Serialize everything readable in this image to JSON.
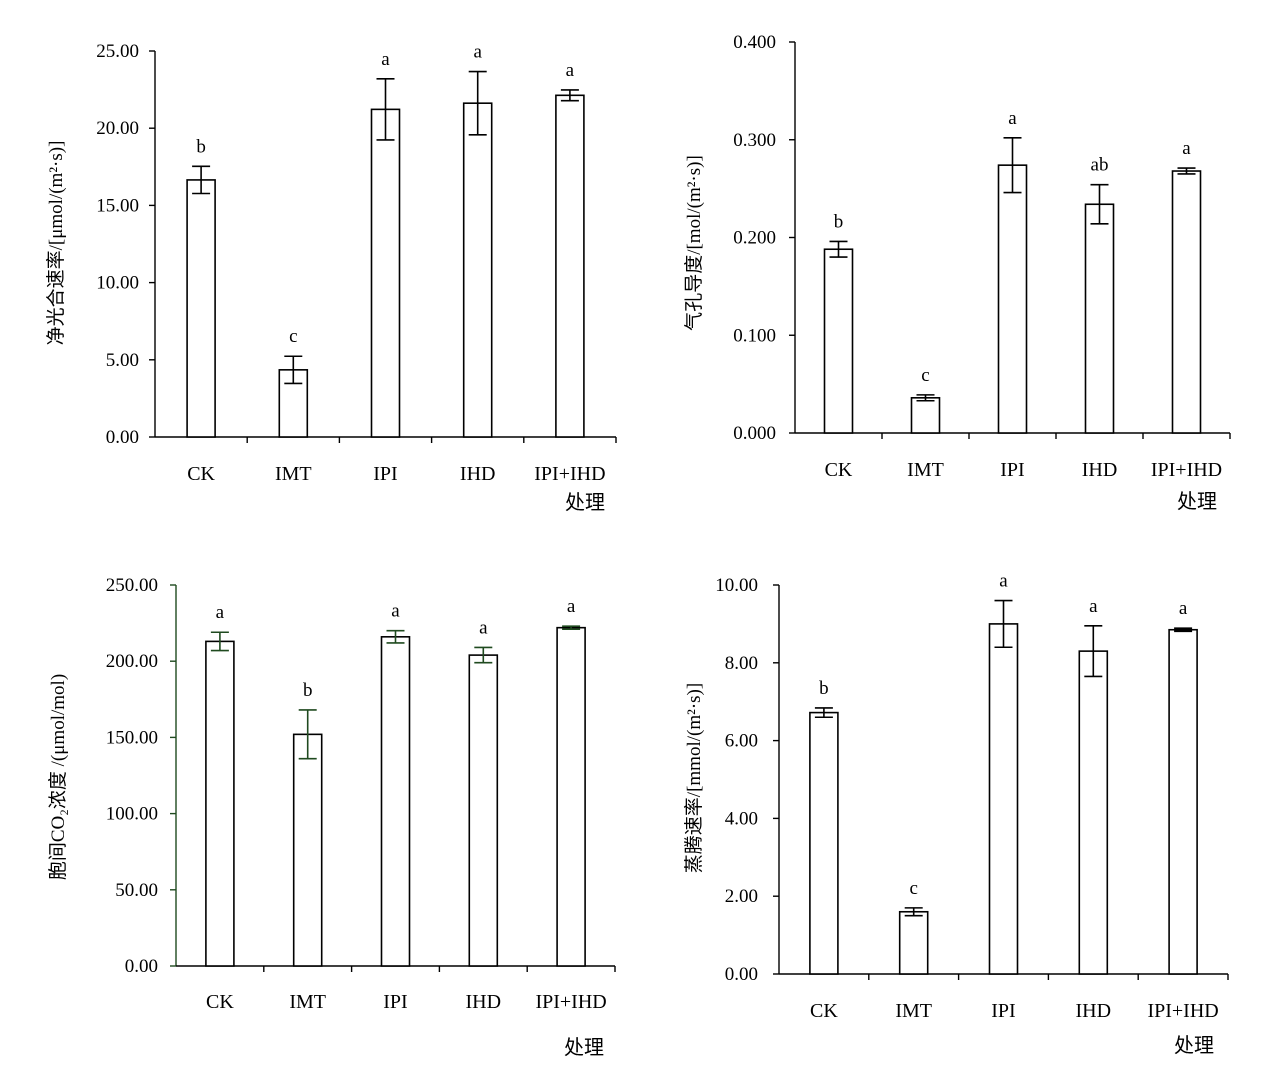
{
  "chart_data": [
    {
      "type": "bar",
      "categories": [
        "CK",
        "IMT",
        "IPI",
        "IHD",
        "IPI+IHD"
      ],
      "values": [
        16.65,
        4.35,
        21.22,
        21.62,
        22.13
      ],
      "errors": [
        0.88,
        0.88,
        1.98,
        2.05,
        0.35
      ],
      "significance": [
        "b",
        "c",
        "a",
        "a",
        "a"
      ],
      "ylabel": "净光合速率/[μmol/(m²·s)]",
      "xlabel": "处理",
      "ylim": [
        0,
        25
      ],
      "yticks": [
        "0.00",
        "5.00",
        "10.00",
        "15.00",
        "20.00",
        "25.00"
      ],
      "axis_color": "#000000"
    },
    {
      "type": "bar",
      "categories": [
        "CK",
        "IMT",
        "IPI",
        "IHD",
        "IPI+IHD"
      ],
      "values": [
        0.188,
        0.036,
        0.274,
        0.234,
        0.268
      ],
      "errors": [
        0.008,
        0.003,
        0.028,
        0.02,
        0.003
      ],
      "significance": [
        "b",
        "c",
        "a",
        "ab",
        "a"
      ],
      "ylabel": "气孔导度/[mol/(m²·s)]",
      "xlabel": "处理",
      "ylim": [
        0,
        0.4
      ],
      "yticks": [
        "0.000",
        "0.100",
        "0.200",
        "0.300",
        "0.400"
      ],
      "axis_color": "#000000"
    },
    {
      "type": "bar",
      "categories": [
        "CK",
        "IMT",
        "IPI",
        "IHD",
        "IPI+IHD"
      ],
      "values": [
        213,
        152,
        216,
        204,
        222
      ],
      "errors": [
        6,
        16,
        4,
        5,
        1
      ],
      "significance": [
        "a",
        "b",
        "a",
        "a",
        "a"
      ],
      "ylabel": "胞间CO₂浓度 /(μmol/mol)",
      "xlabel": "处理",
      "ylim": [
        0,
        250
      ],
      "yticks": [
        "0.00",
        "50.00",
        "100.00",
        "150.00",
        "200.00",
        "250.00"
      ],
      "axis_color": "#1f4a1f"
    },
    {
      "type": "bar",
      "categories": [
        "CK",
        "IMT",
        "IPI",
        "IHD",
        "IPI+IHD"
      ],
      "values": [
        6.72,
        1.6,
        9.0,
        8.3,
        8.85
      ],
      "errors": [
        0.12,
        0.1,
        0.6,
        0.65,
        0.04
      ],
      "significance": [
        "b",
        "c",
        "a",
        "a",
        "a"
      ],
      "ylabel": "蒸腾速率/[mmol/(m²·s)]",
      "xlabel": "处理",
      "ylim": [
        0,
        10
      ],
      "yticks": [
        "0.00",
        "2.00",
        "4.00",
        "6.00",
        "8.00",
        "10.00"
      ],
      "axis_color": "#000000"
    }
  ]
}
